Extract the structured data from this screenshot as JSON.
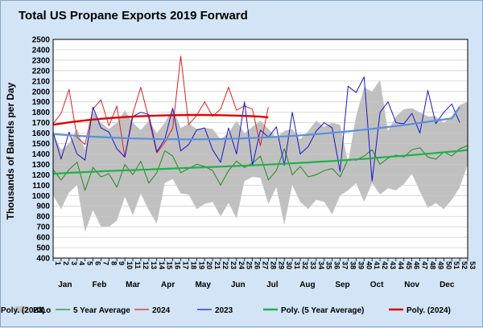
{
  "chart_data": {
    "type": "line",
    "title": "Total US Propane Exports 2019 Forward",
    "ylabel": "Thousands of Barrels per Day",
    "xlabel": "",
    "ylim": [
      400,
      2500
    ],
    "yticks": [
      400,
      500,
      600,
      700,
      800,
      900,
      1000,
      1100,
      1200,
      1300,
      1400,
      1500,
      1600,
      1700,
      1800,
      1900,
      2000,
      2100,
      2200,
      2300,
      2400,
      2500
    ],
    "xlim": [
      1,
      53
    ],
    "week_ticks": [
      1,
      2,
      3,
      4,
      5,
      6,
      7,
      8,
      9,
      10,
      11,
      12,
      13,
      14,
      15,
      16,
      17,
      18,
      19,
      20,
      21,
      22,
      23,
      24,
      25,
      26,
      27,
      28,
      29,
      30,
      31,
      32,
      33,
      34,
      35,
      36,
      37,
      38,
      39,
      40,
      41,
      42,
      43,
      44,
      45,
      46,
      47,
      48,
      49,
      50,
      51,
      52,
      53
    ],
    "months": [
      {
        "label": "Jan",
        "week": 2.5
      },
      {
        "label": "Feb",
        "week": 6.8
      },
      {
        "label": "Mar",
        "week": 11.0
      },
      {
        "label": "Apr",
        "week": 15.4
      },
      {
        "label": "May",
        "week": 19.8
      },
      {
        "label": "Jun",
        "week": 24.2
      },
      {
        "label": "Jul",
        "week": 28.5
      },
      {
        "label": "Aug",
        "week": 32.9
      },
      {
        "label": "Sep",
        "week": 37.3
      },
      {
        "label": "Oct",
        "week": 41.6
      },
      {
        "label": "Nov",
        "week": 46.0
      },
      {
        "label": "Dec",
        "week": 50.4
      }
    ],
    "grid": true,
    "legend_position": "bottom",
    "hilo": {
      "name": "HiLo",
      "color": "#c0c0c0",
      "high": [
        1590,
        1440,
        1500,
        1640,
        1440,
        1810,
        1700,
        1640,
        1700,
        1820,
        1700,
        1630,
        1720,
        1600,
        1700,
        1840,
        1650,
        1690,
        1640,
        1650,
        1640,
        1540,
        1600,
        1720,
        1600,
        1660,
        1720,
        1640,
        1560,
        1620,
        1640,
        1540,
        1620,
        1720,
        1660,
        1700,
        1680,
        1320,
        1760,
        2040,
        2000,
        2110,
        1620,
        1760,
        1830,
        1840,
        1800,
        1760,
        1760,
        1700,
        1760,
        1870,
        1900
      ],
      "low": [
        1000,
        870,
        1030,
        1100,
        650,
        860,
        700,
        700,
        760,
        990,
        810,
        1020,
        860,
        730,
        1120,
        1160,
        1020,
        1010,
        870,
        920,
        940,
        800,
        930,
        780,
        1140,
        1180,
        1170,
        920,
        1080,
        720,
        1100,
        940,
        870,
        960,
        940,
        820,
        1000,
        1050,
        1120,
        940,
        1120,
        1010,
        1070,
        1050,
        1110,
        1210,
        1040,
        880,
        930,
        870,
        960,
        1080,
        1300
      ]
    },
    "series": [
      {
        "name": "5 Year Average",
        "color": "#208a20",
        "width": 1,
        "values": [
          1250,
          1150,
          1250,
          1320,
          1050,
          1270,
          1180,
          1210,
          1080,
          1300,
          1200,
          1330,
          1120,
          1220,
          1430,
          1380,
          1220,
          1260,
          1300,
          1280,
          1240,
          1100,
          1240,
          1330,
          1270,
          1310,
          1380,
          1150,
          1240,
          1450,
          1200,
          1280,
          1180,
          1200,
          1240,
          1260,
          1180,
          1350,
          1340,
          1380,
          1440,
          1300,
          1360,
          1390,
          1370,
          1440,
          1460,
          1370,
          1350,
          1420,
          1380,
          1450,
          1480
        ]
      },
      {
        "name": "2024",
        "color": "#e02020",
        "width": 1,
        "values": [
          1690,
          1790,
          2020,
          1560,
          1490,
          1830,
          1920,
          1670,
          1860,
          1370,
          1790,
          2040,
          1740,
          1410,
          1510,
          1650,
          2340,
          1680,
          1770,
          1900,
          1760,
          1830,
          2040,
          1820,
          1860,
          1830,
          1480,
          1850
        ]
      },
      {
        "name": "2023",
        "color": "#1818c8",
        "width": 1,
        "values": [
          1610,
          1350,
          1610,
          1400,
          1340,
          1850,
          1650,
          1610,
          1450,
          1370,
          1760,
          1800,
          1780,
          1420,
          1540,
          1840,
          1430,
          1490,
          1630,
          1650,
          1440,
          1320,
          1650,
          1400,
          1900,
          1290,
          1630,
          1560,
          1660,
          1290,
          1800,
          1400,
          1470,
          1620,
          1700,
          1650,
          1230,
          2050,
          1990,
          2140,
          1140,
          1800,
          1900,
          1700,
          1690,
          1790,
          1600,
          2010,
          1690,
          1800,
          1880,
          1700
        ]
      },
      {
        "name": "Poly. (5 Year Average)",
        "color": "#22b04a",
        "width": 2.2,
        "trend": true,
        "values": [
          1210,
          1214,
          1218,
          1222,
          1226,
          1229,
          1233,
          1236,
          1239,
          1242,
          1245,
          1248,
          1251,
          1254,
          1257,
          1260,
          1263,
          1266,
          1269,
          1272,
          1275,
          1278,
          1281,
          1284,
          1287,
          1291,
          1294,
          1298,
          1302,
          1306,
          1310,
          1314,
          1318,
          1323,
          1327,
          1332,
          1337,
          1342,
          1348,
          1353,
          1359,
          1365,
          1371,
          1377,
          1383,
          1389,
          1396,
          1402,
          1409,
          1416,
          1423,
          1430,
          1438
        ]
      },
      {
        "name": "Poly. (2024)",
        "color": "#e00000",
        "width": 2.4,
        "trend": true,
        "values": [
          1680,
          1692,
          1703,
          1713,
          1722,
          1730,
          1737,
          1743,
          1749,
          1754,
          1758,
          1762,
          1765,
          1768,
          1770,
          1772,
          1773,
          1774,
          1774,
          1774,
          1773,
          1772,
          1770,
          1768,
          1765,
          1762,
          1758,
          1750
        ]
      },
      {
        "name": "Poly. (2023)",
        "color": "#5b90d8",
        "width": 2.2,
        "trend": true,
        "values": [
          1590,
          1585,
          1580,
          1575,
          1570,
          1566,
          1562,
          1558,
          1555,
          1552,
          1549,
          1547,
          1545,
          1543,
          1542,
          1541,
          1540,
          1540,
          1540,
          1541,
          1542,
          1543,
          1545,
          1547,
          1550,
          1553,
          1556,
          1560,
          1564,
          1568,
          1573,
          1578,
          1584,
          1590,
          1596,
          1603,
          1610,
          1617,
          1625,
          1633,
          1641,
          1650,
          1659,
          1668,
          1678,
          1688,
          1698,
          1709,
          1720,
          1731,
          1742,
          1850
        ]
      }
    ]
  }
}
